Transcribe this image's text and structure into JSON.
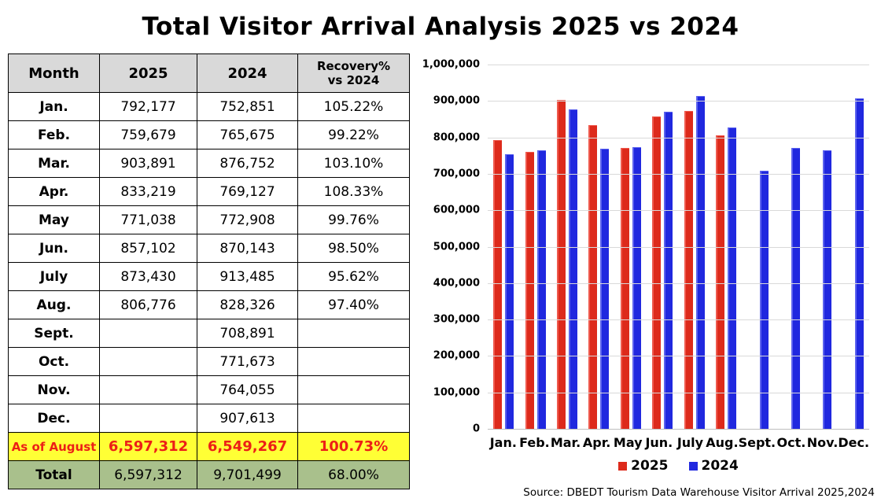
{
  "title": "Total Visitor Arrival Analysis 2025 vs 2024",
  "source": "Source: DBEDT Tourism Data Warehouse Visitor Arrival 2025,2024",
  "table": {
    "headers": [
      "Month",
      "2025",
      "2024",
      "Recovery%\nvs 2024"
    ],
    "rows": [
      {
        "month": "Jan.",
        "y2025": "792,177",
        "y2024": "752,851",
        "recovery": "105.22%"
      },
      {
        "month": "Feb.",
        "y2025": "759,679",
        "y2024": "765,675",
        "recovery": "99.22%"
      },
      {
        "month": "Mar.",
        "y2025": "903,891",
        "y2024": "876,752",
        "recovery": "103.10%"
      },
      {
        "month": "Apr.",
        "y2025": "833,219",
        "y2024": "769,127",
        "recovery": "108.33%"
      },
      {
        "month": "May",
        "y2025": "771,038",
        "y2024": "772,908",
        "recovery": "99.76%"
      },
      {
        "month": "Jun.",
        "y2025": "857,102",
        "y2024": "870,143",
        "recovery": "98.50%"
      },
      {
        "month": "July",
        "y2025": "873,430",
        "y2024": "913,485",
        "recovery": "95.62%"
      },
      {
        "month": "Aug.",
        "y2025": "806,776",
        "y2024": "828,326",
        "recovery": "97.40%"
      },
      {
        "month": "Sept.",
        "y2025": "",
        "y2024": "708,891",
        "recovery": ""
      },
      {
        "month": "Oct.",
        "y2025": "",
        "y2024": "771,673",
        "recovery": ""
      },
      {
        "month": "Nov.",
        "y2025": "",
        "y2024": "764,055",
        "recovery": ""
      },
      {
        "month": "Dec.",
        "y2025": "",
        "y2024": "907,613",
        "recovery": ""
      }
    ],
    "as_of_august": {
      "label": "As of August",
      "y2025": "6,597,312",
      "y2024": "6,549,267",
      "recovery": "100.73%"
    },
    "total": {
      "label": "Total",
      "y2025": "6,597,312",
      "y2024": "9,701,499",
      "recovery": "68.00%"
    }
  },
  "chart_data": {
    "type": "bar",
    "title": "",
    "xlabel": "",
    "ylabel": "",
    "categories": [
      "Jan.",
      "Feb.",
      "Mar.",
      "Apr.",
      "May",
      "Jun.",
      "July",
      "Aug.",
      "Sept.",
      "Oct.",
      "Nov.",
      "Dec."
    ],
    "series": [
      {
        "name": "2025",
        "color": "#DD2A1B",
        "color_light": "#EF5A4E",
        "values": [
          792177,
          759679,
          903891,
          833219,
          771038,
          857102,
          873430,
          806776,
          null,
          null,
          null,
          null
        ]
      },
      {
        "name": "2024",
        "color": "#2028DF",
        "color_light": "#5C63EE",
        "values": [
          752851,
          765675,
          876752,
          769127,
          772908,
          870143,
          913485,
          828326,
          708891,
          771673,
          764055,
          907613
        ]
      }
    ],
    "ylim": [
      0,
      1000000
    ],
    "y_tick_step": 100000,
    "y_tick_labels": [
      "1,000,000",
      "900,000",
      "800,000",
      "700,000",
      "600,000",
      "500,000",
      "400,000",
      "300,000",
      "200,000",
      "100,000",
      "0"
    ],
    "grid": true,
    "legend_position": "bottom"
  },
  "colors": {
    "header_bg": "#D9D9D9",
    "highlight_row_bg": "#FFFF35",
    "highlight_row_text": "#EC1F17",
    "total_row_bg": "#A9C08C",
    "gridline": "#D9D9D9",
    "axis_line": "#BFBFBF",
    "text": "#000000"
  }
}
